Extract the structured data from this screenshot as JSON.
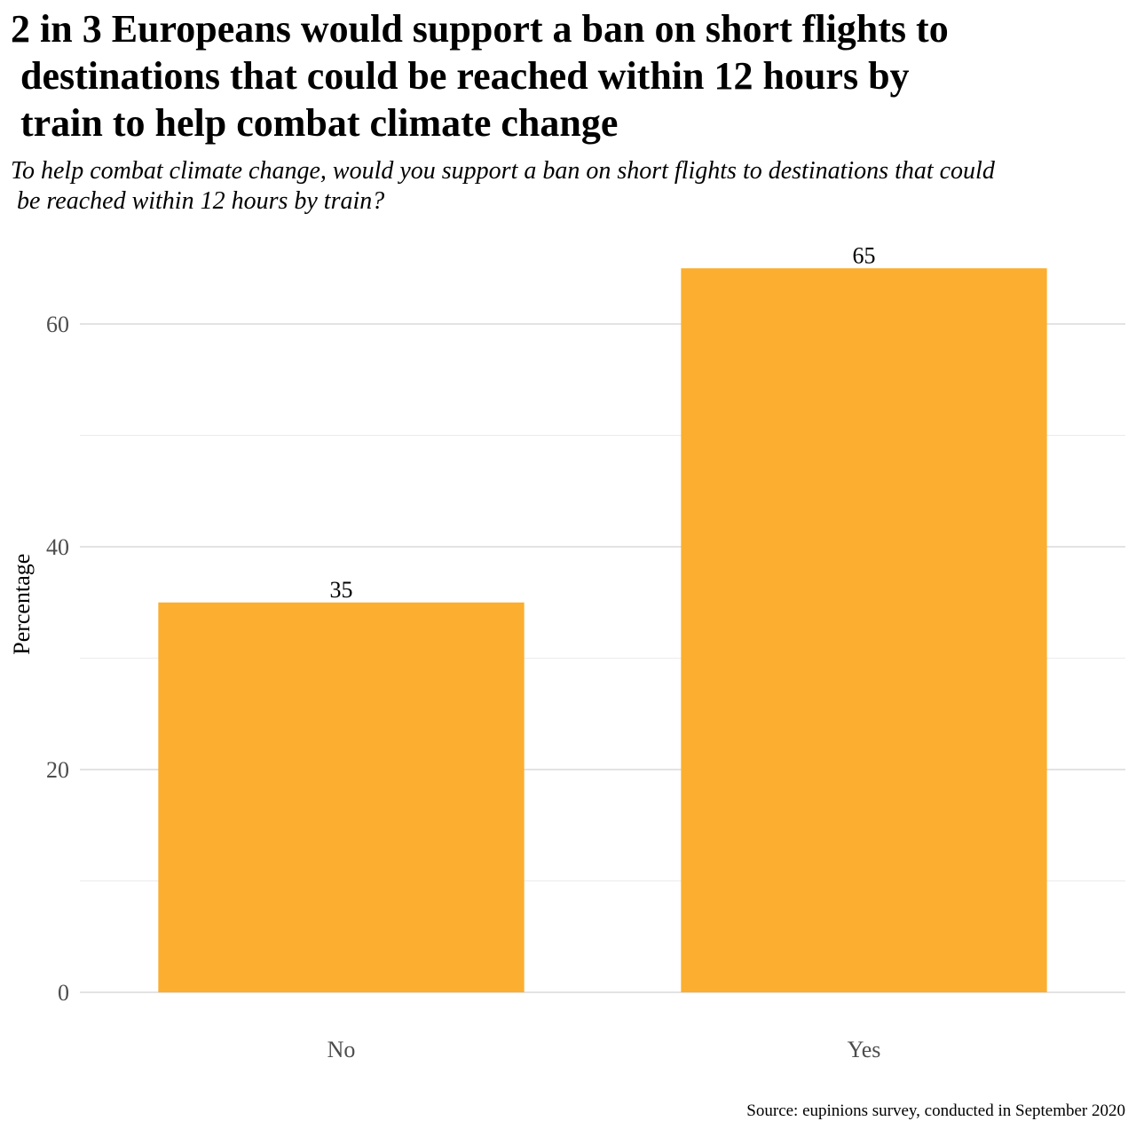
{
  "chart_data": {
    "type": "bar",
    "title_lines": [
      "2 in 3 Europeans would support a ban on short flights to",
      " destinations that could be reached within 12 hours by",
      " train to help combat climate change"
    ],
    "subtitle_lines": [
      "To help combat climate change, would you support a ban on short flights to destinations that could",
      " be reached within 12 hours by train?"
    ],
    "categories": [
      "No",
      "Yes"
    ],
    "values": [
      35,
      65
    ],
    "data_labels": [
      "35",
      "65"
    ],
    "xlabel": "",
    "ylabel": "Percentage",
    "ylim": [
      0,
      70
    ],
    "y_ticks": [
      0,
      20,
      40,
      60
    ],
    "y_tick_labels": [
      "0",
      "20",
      "40",
      "60"
    ],
    "y_minor_ticks": [
      10,
      30,
      50
    ],
    "grid": true,
    "legend": "none",
    "bar_color": "#FBAE2F",
    "caption": "Source: eupinions survey, conducted in September 2020"
  }
}
